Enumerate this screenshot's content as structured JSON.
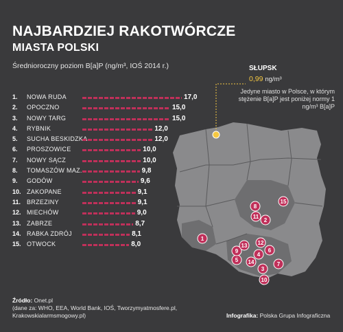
{
  "title_line1": "NAJBARDZIEJ RAKOTWÓRCZE",
  "title_line2": "MIASTA POLSKI",
  "subtitle": "Średnioroczny poziom B[a]P (ng/m³, IOŚ 2014 r.)",
  "chart_data": {
    "type": "bar",
    "categories": [
      "NOWA RUDA",
      "OPOCZNO",
      "NOWY TARG",
      "RYBNIK",
      "SUCHA BESKIDZKA",
      "PROSZOWICE",
      "NOWY SĄCZ",
      "TOMASZÓW MAZ.",
      "GODÓW",
      "ZAKOPANE",
      "BRZEZINY",
      "MIECHÓW",
      "ZABRZE",
      "RABKA ZDRÓJ",
      "OTWOCK"
    ],
    "ranks": [
      "1.",
      "2.",
      "3.",
      "4.",
      "5.",
      "6.",
      "7.",
      "8.",
      "9.",
      "10.",
      "11.",
      "12.",
      "13.",
      "14.",
      "15."
    ],
    "values": [
      17.0,
      15.0,
      15.0,
      12.0,
      12.0,
      10.0,
      10.0,
      9.8,
      9.6,
      9.1,
      9.1,
      9.0,
      8.7,
      8.1,
      8.0
    ],
    "value_labels": [
      "17,0",
      "15,0",
      "15,0",
      "12,0",
      "12,0",
      "10,0",
      "10,0",
      "9,8",
      "9,6",
      "9,1",
      "9,1",
      "9,0",
      "8,7",
      "8,1",
      "8,0"
    ]
  },
  "map": {
    "markers": [
      "1",
      "2",
      "3",
      "4",
      "5",
      "6",
      "7",
      "8",
      "9",
      "10",
      "11",
      "12",
      "13",
      "14",
      "15"
    ],
    "slupsk_label": "SŁUPSK",
    "slupsk_value": "0,99",
    "slupsk_unit": "ng/m³",
    "note": "Jedyne miasto w Polsce, w którym stężenie B[a]P jest poniżej normy 1 ng/m³ B[a]P",
    "colors": {
      "marker": "#c0305a",
      "slupsk": "#f5c842",
      "land": "#8a8a8c",
      "lesser": "#6e6e70"
    }
  },
  "source_label": "Źródło:",
  "source_text": " Onet.pl",
  "source_line2": "(dane za: WHO, EEA, World Bank, IOŚ, Tworzymyatmosfere.pl,",
  "source_line3": "Krakowskialarmsmogowy.pl)",
  "credit_label": "Infografika:",
  "credit_text": " Polska Grupa Infograficzna"
}
